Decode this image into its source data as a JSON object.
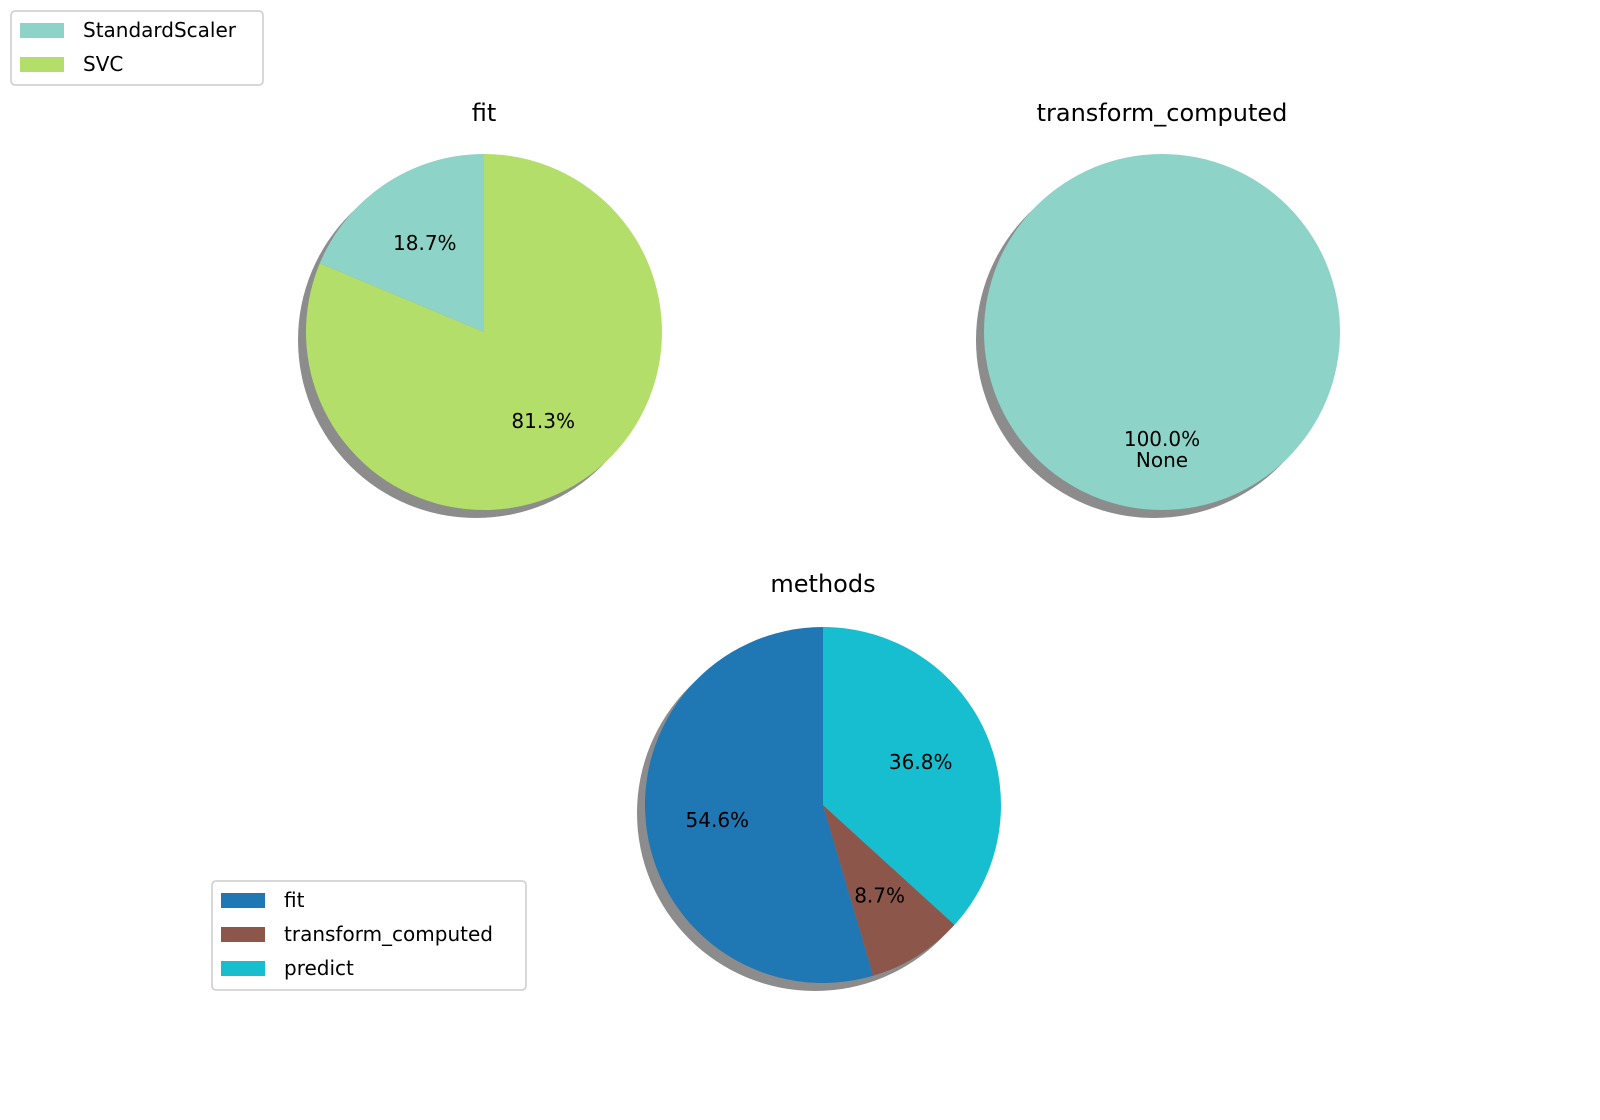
{
  "chart_data": [
    {
      "type": "pie",
      "title": "fit",
      "labels": [
        "StandardScaler",
        "SVC"
      ],
      "values": [
        18.7,
        81.3
      ],
      "percent_labels": [
        "18.7%",
        "81.3%"
      ],
      "colors": [
        "#8dd3c7",
        "#b3de69"
      ],
      "shadow": true,
      "start_angle_deg": 90,
      "legend": {
        "position": "top-left",
        "entries": [
          "StandardScaler",
          "SVC"
        ],
        "colors": [
          "#8dd3c7",
          "#b3de69"
        ]
      }
    },
    {
      "type": "pie",
      "title": "transform_computed",
      "labels": [
        "None"
      ],
      "values": [
        100.0
      ],
      "percent_labels": [
        "100.0%"
      ],
      "colors": [
        "#8dd3c7"
      ],
      "shadow": true,
      "start_angle_deg": 90
    },
    {
      "type": "pie",
      "title": "methods",
      "labels": [
        "fit",
        "transform_computed",
        "predict"
      ],
      "values": [
        54.6,
        8.7,
        36.8
      ],
      "percent_labels": [
        "54.6%",
        "8.7%",
        "36.8%"
      ],
      "colors": [
        "#1f77b4",
        "#8c564b",
        "#17becf"
      ],
      "shadow": true,
      "start_angle_deg": 90,
      "legend": {
        "position": "lower-left",
        "entries": [
          "fit",
          "transform_computed",
          "predict"
        ],
        "colors": [
          "#1f77b4",
          "#8c564b",
          "#17becf"
        ]
      }
    }
  ]
}
